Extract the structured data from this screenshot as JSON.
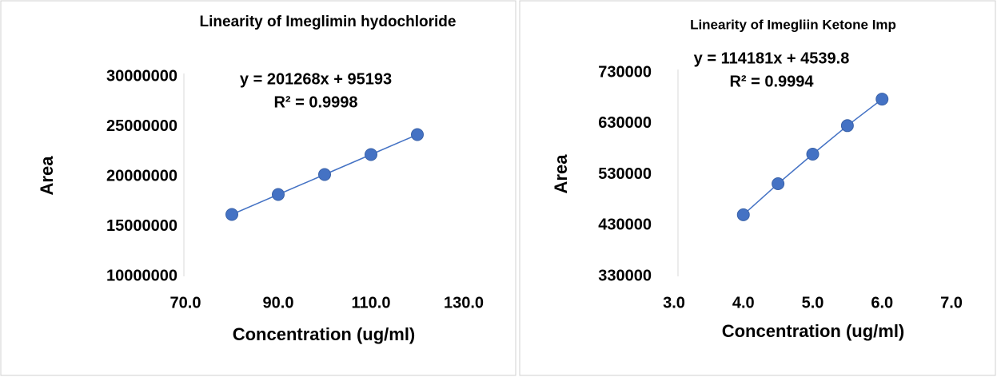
{
  "chart_data": [
    {
      "type": "scatter",
      "title": "Linearity of Imeglimin hydochloride",
      "annotations": [
        "y = 201268x + 95193",
        "R² = 0.9998"
      ],
      "xlabel": "Concentration (ug/ml)",
      "ylabel": "Area",
      "x": [
        80,
        90,
        100,
        110,
        120
      ],
      "values": [
        16200000,
        18200000,
        20200000,
        22200000,
        24200000
      ],
      "color": "#4472c4",
      "line": true,
      "xlim": [
        70,
        130
      ],
      "xticks": [
        {
          "value": 70,
          "label": "70.0"
        },
        {
          "value": 90,
          "label": "90.0"
        },
        {
          "value": 110,
          "label": "110.0"
        },
        {
          "value": 130,
          "label": "130.0"
        }
      ],
      "ylim": [
        10000000,
        30000000
      ],
      "yticks": [
        10000000,
        15000000,
        20000000,
        25000000,
        30000000
      ]
    },
    {
      "type": "scatter",
      "title": "Linearity of Imegliin Ketone Imp",
      "annotations": [
        "y = 114181x + 4539.8",
        "R² = 0.9994"
      ],
      "xlabel": "Concentration (ug/ml)",
      "ylabel": "Area",
      "x": [
        4,
        4.5,
        5,
        5.5,
        6
      ],
      "values": [
        451000,
        512000,
        570000,
        626000,
        678000
      ],
      "color": "#4472c4",
      "line": true,
      "xlim": [
        3,
        7
      ],
      "xticks": [
        {
          "value": 3,
          "label": "3.0"
        },
        {
          "value": 4,
          "label": "4.0"
        },
        {
          "value": 5,
          "label": "5.0"
        },
        {
          "value": 6,
          "label": "6.0"
        },
        {
          "value": 7,
          "label": "7.0"
        }
      ],
      "ylim": [
        330000,
        730000
      ],
      "yticks": [
        330000,
        430000,
        530000,
        630000,
        730000
      ]
    }
  ]
}
